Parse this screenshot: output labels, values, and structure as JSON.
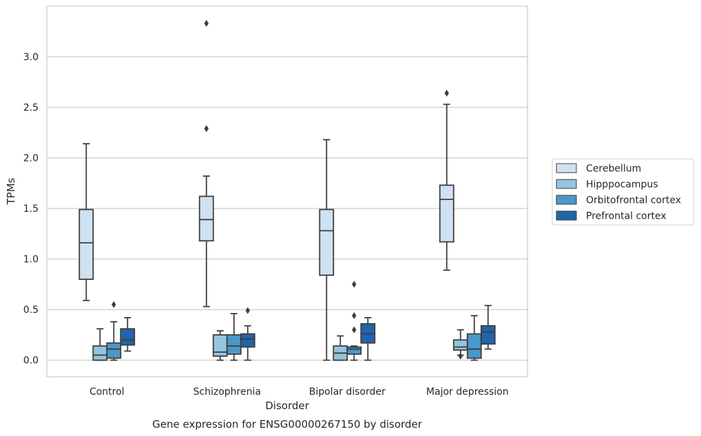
{
  "chart_data": {
    "type": "box",
    "xlabel": "Disorder",
    "ylabel": "TPMs",
    "caption": "Gene expression for ENSG00000267150 by disorder",
    "ylim": [
      -0.165,
      3.5
    ],
    "yticks": [
      0.0,
      0.5,
      1.0,
      1.5,
      2.0,
      2.5,
      3.0
    ],
    "ytick_labels": [
      "0.0",
      "0.5",
      "1.0",
      "1.5",
      "2.0",
      "2.5",
      "3.0"
    ],
    "grid": "horizontal",
    "legend_position": "right",
    "categories": [
      "Control",
      "Schizophrenia",
      "Bipolar disorder",
      "Major depression"
    ],
    "series": [
      {
        "name": "Cerebellum",
        "color": "#d0e1f2",
        "boxes": [
          {
            "whislo": 0.59,
            "q1": 0.8,
            "med": 1.16,
            "q3": 1.49,
            "whishi": 2.14,
            "fliers": []
          },
          {
            "whislo": 0.53,
            "q1": 1.18,
            "med": 1.39,
            "q3": 1.62,
            "whishi": 1.82,
            "fliers": [
              2.29,
              3.33
            ]
          },
          {
            "whislo": 0.0,
            "q1": 0.84,
            "med": 1.28,
            "q3": 1.49,
            "whishi": 2.18,
            "fliers": []
          },
          {
            "whislo": 0.89,
            "q1": 1.17,
            "med": 1.59,
            "q3": 1.73,
            "whishi": 2.53,
            "fliers": [
              2.64
            ]
          }
        ]
      },
      {
        "name": "Hipppocampus",
        "color": "#94c4df",
        "boxes": [
          {
            "whislo": 0.0,
            "q1": 0.0,
            "med": 0.05,
            "q3": 0.14,
            "whishi": 0.31,
            "fliers": []
          },
          {
            "whislo": 0.0,
            "q1": 0.04,
            "med": 0.08,
            "q3": 0.25,
            "whishi": 0.29,
            "fliers": []
          },
          {
            "whislo": 0.0,
            "q1": 0.0,
            "med": 0.07,
            "q3": 0.14,
            "whishi": 0.24,
            "fliers": []
          },
          {
            "whislo": 0.05,
            "q1": 0.1,
            "med": 0.13,
            "q3": 0.2,
            "whishi": 0.3,
            "fliers": [
              0.04
            ]
          }
        ]
      },
      {
        "name": "Orbitofrontal cortex",
        "color": "#4a98c9",
        "boxes": [
          {
            "whislo": 0.0,
            "q1": 0.02,
            "med": 0.11,
            "q3": 0.17,
            "whishi": 0.38,
            "fliers": [
              0.55
            ]
          },
          {
            "whislo": 0.0,
            "q1": 0.06,
            "med": 0.14,
            "q3": 0.25,
            "whishi": 0.46,
            "fliers": []
          },
          {
            "whislo": 0.0,
            "q1": 0.06,
            "med": 0.11,
            "q3": 0.13,
            "whishi": 0.14,
            "fliers": [
              0.3,
              0.44,
              0.75
            ]
          },
          {
            "whislo": 0.0,
            "q1": 0.02,
            "med": 0.11,
            "q3": 0.26,
            "whishi": 0.44,
            "fliers": []
          }
        ]
      },
      {
        "name": "Prefrontal cortex",
        "color": "#2264a9",
        "boxes": [
          {
            "whislo": 0.09,
            "q1": 0.15,
            "med": 0.2,
            "q3": 0.31,
            "whishi": 0.42,
            "fliers": []
          },
          {
            "whislo": 0.0,
            "q1": 0.13,
            "med": 0.21,
            "q3": 0.26,
            "whishi": 0.34,
            "fliers": [
              0.49
            ]
          },
          {
            "whislo": 0.0,
            "q1": 0.17,
            "med": 0.26,
            "q3": 0.36,
            "whishi": 0.42,
            "fliers": []
          },
          {
            "whislo": 0.11,
            "q1": 0.16,
            "med": 0.28,
            "q3": 0.34,
            "whishi": 0.54,
            "fliers": []
          }
        ]
      }
    ]
  }
}
